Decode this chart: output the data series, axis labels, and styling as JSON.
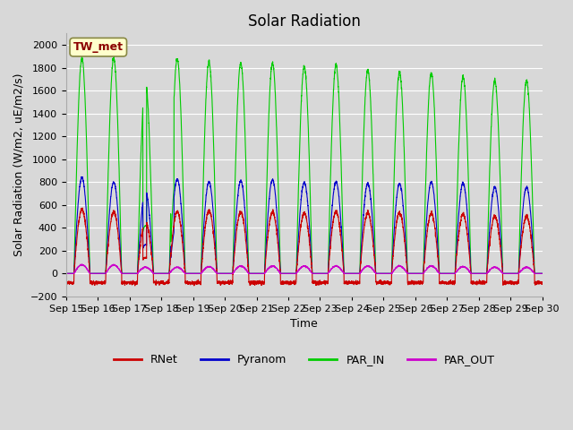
{
  "title": "Solar Radiation",
  "ylabel": "Solar Radiation (W/m2, uE/m2/s)",
  "xlabel": "Time",
  "ylim": [
    -200,
    2100
  ],
  "yticks": [
    -200,
    0,
    200,
    400,
    600,
    800,
    1000,
    1200,
    1400,
    1600,
    1800,
    2000
  ],
  "xtick_labels": [
    "Sep 15",
    "Sep 16",
    "Sep 17",
    "Sep 18",
    "Sep 19",
    "Sep 20",
    "Sep 21",
    "Sep 22",
    "Sep 23",
    "Sep 24",
    "Sep 25",
    "Sep 26",
    "Sep 27",
    "Sep 28",
    "Sep 29",
    "Sep 30"
  ],
  "station_label": "TW_met",
  "colors": {
    "RNet": "#cc0000",
    "Pyranom": "#0000cc",
    "PAR_IN": "#00cc00",
    "PAR_OUT": "#cc00cc"
  },
  "fig_bg_color": "#d8d8d8",
  "plot_bg_color": "#d8d8d8",
  "grid_color": "#ffffff",
  "daily_peaks": {
    "PAR_IN": [
      1880,
      1880,
      1670,
      1880,
      1850,
      1840,
      1840,
      1810,
      1820,
      1775,
      1760,
      1750,
      1725,
      1685,
      1685
    ],
    "Pyranom": [
      840,
      800,
      720,
      825,
      800,
      810,
      820,
      795,
      800,
      785,
      785,
      800,
      790,
      755,
      755
    ],
    "RNet": [
      560,
      540,
      460,
      540,
      550,
      540,
      540,
      530,
      540,
      530,
      530,
      525,
      515,
      500,
      500
    ],
    "PAR_OUT": [
      75,
      75,
      55,
      55,
      60,
      65,
      65,
      65,
      65,
      65,
      65,
      65,
      60,
      55,
      55
    ]
  },
  "pts_per_day": 288,
  "total_days": 15,
  "title_fontsize": 12,
  "label_fontsize": 9,
  "tick_fontsize": 8
}
